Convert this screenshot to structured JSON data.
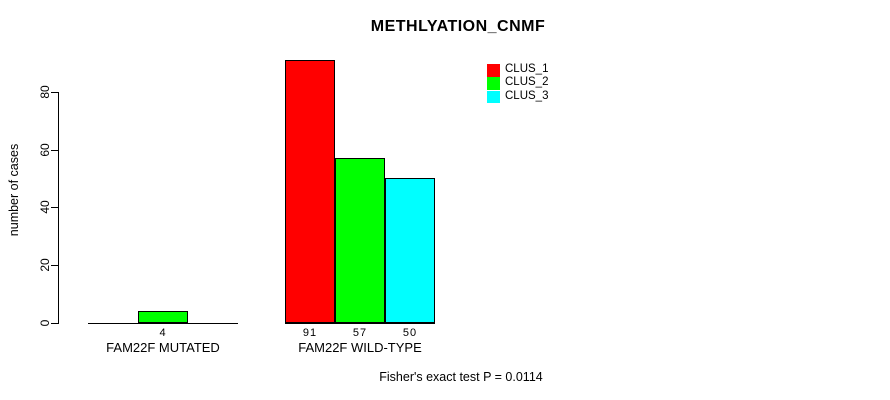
{
  "chart_data": {
    "type": "bar",
    "title": "METHLYATION_CNMF",
    "ylabel": "number of cases",
    "xlabel": "",
    "categories": [
      "FAM22F MUTATED",
      "FAM22F WILD-TYPE"
    ],
    "series": [
      {
        "name": "CLUS_1",
        "color": "#ff0000",
        "values": [
          0,
          91
        ]
      },
      {
        "name": "CLUS_2",
        "color": "#00ff00",
        "values": [
          4,
          57
        ]
      },
      {
        "name": "CLUS_3",
        "color": "#00ffff",
        "values": [
          0,
          50
        ]
      }
    ],
    "bar_value_labels": [
      [
        "",
        "4",
        ""
      ],
      [
        "91",
        "57",
        "50"
      ]
    ],
    "yticks": [
      0,
      20,
      40,
      60,
      80
    ],
    "ylim": [
      0,
      91
    ],
    "grid": false,
    "legend_position": "top-right",
    "legend_labels": [
      "CLUS_1",
      "CLUS_2",
      "CLUS_3"
    ],
    "annotation": "Fisher's exact test P = 0.0114",
    "bar_border_color": "#000000",
    "background_color": "#ffffff"
  }
}
